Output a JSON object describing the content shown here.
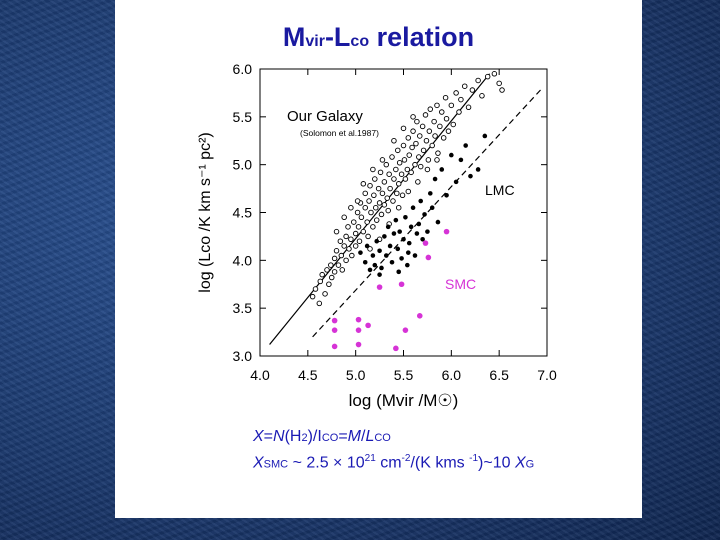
{
  "slide": {
    "title_main_1": "M",
    "title_sub_1": "vir",
    "title_main_2": "-L",
    "title_sub_2": "co",
    "title_main_3": " relation"
  },
  "formulas": {
    "line1": {
      "X": "X",
      "eq": "=",
      "N": "N",
      "h2": "(H",
      "h2sub": "2",
      "rest": ")/I",
      "co_sub": "CO",
      "eq2": "=",
      "M": "M",
      "slash": "/",
      "L": "L",
      "co_sub2": "CO"
    },
    "line2": {
      "X": "X",
      "smc_sub": "SMC",
      "text1": " ~ 2.5 × 10",
      "exp1": "21",
      "text2": " cm",
      "exp2": "-2",
      "text3": "/(K kms ",
      "exp3": "-1",
      "text4": ")~10 ",
      "XG": "X",
      "g_sub": "G"
    }
  },
  "chart_data": {
    "type": "scatter",
    "xlabel": "log (Mvir /M☉)",
    "ylabel": "log (Lco /K km s⁻¹ pc²)",
    "xlim": [
      4.0,
      7.0
    ],
    "ylim": [
      3.0,
      6.0
    ],
    "xticks": [
      "4.0",
      "4.5",
      "5.0",
      "5.5",
      "6.0",
      "6.5",
      "7.0"
    ],
    "yticks": [
      "3.0",
      "3.5",
      "4.0",
      "4.5",
      "5.0",
      "5.5",
      "6.0"
    ],
    "annotations": {
      "galaxy": "Our Galaxy",
      "galaxy_ref": "(Solomon et al.1987)",
      "lmc": "LMC",
      "smc": "SMC"
    },
    "lines": [
      {
        "style": "solid",
        "x": [
          4.1,
          6.4
        ],
        "y": [
          3.12,
          5.95
        ]
      },
      {
        "style": "dashed",
        "x": [
          4.55,
          6.95
        ],
        "y": [
          3.2,
          5.8
        ]
      }
    ],
    "series": [
      {
        "marker": "open-circle",
        "color": "#000000",
        "points": [
          [
            4.55,
            3.62
          ],
          [
            4.58,
            3.7
          ],
          [
            4.62,
            3.55
          ],
          [
            4.63,
            3.78
          ],
          [
            4.65,
            3.85
          ],
          [
            4.68,
            3.65
          ],
          [
            4.7,
            3.9
          ],
          [
            4.72,
            3.75
          ],
          [
            4.74,
            3.95
          ],
          [
            4.75,
            3.82
          ],
          [
            4.78,
            4.02
          ],
          [
            4.78,
            3.88
          ],
          [
            4.8,
            4.1
          ],
          [
            4.82,
            3.95
          ],
          [
            4.84,
            4.2
          ],
          [
            4.85,
            4.05
          ],
          [
            4.86,
            3.9
          ],
          [
            4.88,
            4.15
          ],
          [
            4.9,
            4.25
          ],
          [
            4.9,
            4.0
          ],
          [
            4.92,
            4.35
          ],
          [
            4.93,
            4.12
          ],
          [
            4.95,
            4.22
          ],
          [
            4.96,
            4.05
          ],
          [
            4.98,
            4.4
          ],
          [
            5.0,
            4.28
          ],
          [
            5.0,
            4.15
          ],
          [
            5.02,
            4.5
          ],
          [
            5.03,
            4.35
          ],
          [
            5.04,
            4.2
          ],
          [
            5.05,
            4.6
          ],
          [
            5.06,
            4.45
          ],
          [
            5.08,
            4.3
          ],
          [
            5.1,
            4.7
          ],
          [
            5.1,
            4.55
          ],
          [
            5.12,
            4.4
          ],
          [
            5.13,
            4.25
          ],
          [
            5.14,
            4.62
          ],
          [
            5.15,
            4.78
          ],
          [
            5.16,
            4.5
          ],
          [
            5.18,
            4.35
          ],
          [
            5.19,
            4.68
          ],
          [
            5.2,
            4.85
          ],
          [
            5.21,
            4.55
          ],
          [
            5.22,
            4.42
          ],
          [
            5.24,
            4.75
          ],
          [
            5.25,
            4.6
          ],
          [
            5.26,
            4.92
          ],
          [
            5.27,
            4.48
          ],
          [
            5.28,
            4.7
          ],
          [
            5.3,
            4.58
          ],
          [
            5.3,
            4.82
          ],
          [
            5.32,
            5.0
          ],
          [
            5.33,
            4.65
          ],
          [
            5.34,
            4.52
          ],
          [
            5.35,
            4.9
          ],
          [
            5.36,
            4.75
          ],
          [
            5.38,
            5.08
          ],
          [
            5.39,
            4.62
          ],
          [
            5.4,
            4.85
          ],
          [
            5.42,
            4.95
          ],
          [
            5.43,
            4.7
          ],
          [
            5.44,
            5.15
          ],
          [
            5.45,
            4.8
          ],
          [
            5.46,
            5.02
          ],
          [
            5.48,
            4.9
          ],
          [
            5.49,
            4.68
          ],
          [
            5.5,
            5.2
          ],
          [
            5.51,
            5.05
          ],
          [
            5.52,
            4.85
          ],
          [
            5.54,
            4.95
          ],
          [
            5.55,
            5.28
          ],
          [
            5.56,
            5.1
          ],
          [
            5.58,
            4.92
          ],
          [
            5.59,
            5.18
          ],
          [
            5.6,
            5.35
          ],
          [
            5.62,
            5.0
          ],
          [
            5.63,
            5.22
          ],
          [
            5.64,
            5.45
          ],
          [
            5.66,
            5.08
          ],
          [
            5.67,
            5.3
          ],
          [
            5.68,
            4.98
          ],
          [
            5.7,
            5.4
          ],
          [
            5.71,
            5.15
          ],
          [
            5.73,
            5.52
          ],
          [
            5.74,
            5.25
          ],
          [
            5.76,
            5.05
          ],
          [
            5.77,
            5.35
          ],
          [
            5.78,
            5.58
          ],
          [
            5.8,
            5.2
          ],
          [
            5.82,
            5.45
          ],
          [
            5.83,
            5.3
          ],
          [
            5.85,
            5.62
          ],
          [
            5.86,
            5.12
          ],
          [
            5.88,
            5.4
          ],
          [
            5.9,
            5.55
          ],
          [
            5.92,
            5.28
          ],
          [
            5.94,
            5.7
          ],
          [
            5.95,
            5.48
          ],
          [
            5.97,
            5.35
          ],
          [
            6.0,
            5.62
          ],
          [
            6.02,
            5.42
          ],
          [
            6.05,
            5.75
          ],
          [
            6.08,
            5.55
          ],
          [
            6.1,
            5.68
          ],
          [
            6.14,
            5.82
          ],
          [
            6.18,
            5.6
          ],
          [
            6.22,
            5.78
          ],
          [
            6.28,
            5.88
          ],
          [
            6.32,
            5.72
          ],
          [
            6.38,
            5.92
          ],
          [
            6.45,
            5.95
          ],
          [
            6.5,
            5.85
          ],
          [
            6.53,
            5.78
          ],
          [
            4.8,
            4.3
          ],
          [
            4.88,
            4.45
          ],
          [
            4.95,
            4.55
          ],
          [
            5.02,
            4.62
          ],
          [
            5.08,
            4.8
          ],
          [
            5.18,
            4.95
          ],
          [
            5.28,
            5.05
          ],
          [
            5.4,
            5.25
          ],
          [
            5.5,
            5.38
          ],
          [
            5.6,
            5.5
          ],
          [
            5.15,
            4.12
          ],
          [
            5.25,
            4.22
          ],
          [
            5.35,
            4.38
          ],
          [
            5.45,
            4.55
          ],
          [
            5.55,
            4.72
          ],
          [
            5.65,
            4.82
          ],
          [
            5.75,
            4.95
          ],
          [
            5.85,
            5.05
          ]
        ]
      },
      {
        "marker": "filled-circle",
        "color": "#000000",
        "points": [
          [
            5.05,
            4.08
          ],
          [
            5.1,
            3.98
          ],
          [
            5.12,
            4.15
          ],
          [
            5.15,
            3.9
          ],
          [
            5.18,
            4.05
          ],
          [
            5.2,
            3.95
          ],
          [
            5.22,
            4.2
          ],
          [
            5.25,
            4.1
          ],
          [
            5.27,
            3.92
          ],
          [
            5.3,
            4.25
          ],
          [
            5.32,
            4.05
          ],
          [
            5.34,
            4.35
          ],
          [
            5.36,
            4.15
          ],
          [
            5.38,
            3.98
          ],
          [
            5.4,
            4.28
          ],
          [
            5.42,
            4.42
          ],
          [
            5.44,
            4.12
          ],
          [
            5.46,
            4.3
          ],
          [
            5.48,
            4.02
          ],
          [
            5.5,
            4.22
          ],
          [
            5.52,
            4.45
          ],
          [
            5.54,
            3.95
          ],
          [
            5.56,
            4.18
          ],
          [
            5.58,
            4.35
          ],
          [
            5.6,
            4.55
          ],
          [
            5.62,
            4.05
          ],
          [
            5.64,
            4.28
          ],
          [
            5.66,
            4.38
          ],
          [
            5.68,
            4.62
          ],
          [
            5.7,
            4.22
          ],
          [
            5.72,
            4.48
          ],
          [
            5.75,
            4.3
          ],
          [
            5.78,
            4.7
          ],
          [
            5.8,
            4.55
          ],
          [
            5.83,
            4.85
          ],
          [
            5.86,
            4.4
          ],
          [
            5.9,
            4.95
          ],
          [
            5.95,
            4.68
          ],
          [
            6.0,
            5.1
          ],
          [
            6.05,
            4.82
          ],
          [
            6.1,
            5.05
          ],
          [
            6.15,
            5.2
          ],
          [
            6.2,
            4.88
          ],
          [
            6.28,
            4.95
          ],
          [
            6.35,
            5.3
          ],
          [
            5.25,
            3.85
          ],
          [
            5.45,
            3.88
          ],
          [
            5.55,
            4.08
          ]
        ]
      },
      {
        "marker": "filled-circle",
        "color": "#d633d6",
        "points": [
          [
            4.78,
            3.37
          ],
          [
            4.78,
            3.27
          ],
          [
            4.78,
            3.1
          ],
          [
            5.03,
            3.38
          ],
          [
            5.03,
            3.27
          ],
          [
            5.03,
            3.12
          ],
          [
            5.13,
            3.32
          ],
          [
            5.25,
            3.72
          ],
          [
            5.42,
            3.08
          ],
          [
            5.48,
            3.75
          ],
          [
            5.52,
            3.27
          ],
          [
            5.67,
            3.42
          ],
          [
            5.73,
            4.18
          ],
          [
            5.76,
            4.03
          ],
          [
            5.95,
            4.3
          ]
        ]
      }
    ]
  }
}
